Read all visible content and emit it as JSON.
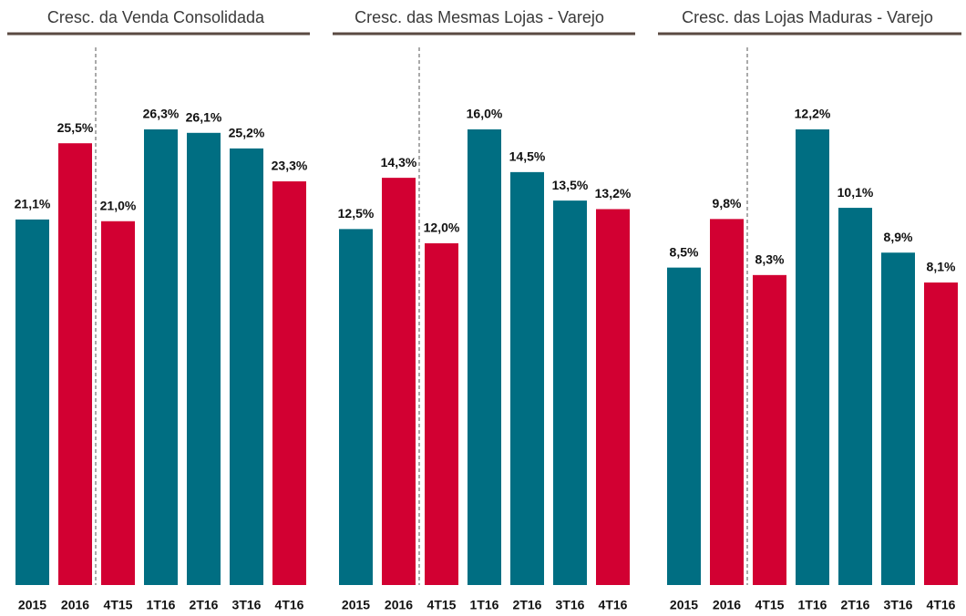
{
  "chart_data": [
    {
      "type": "bar",
      "title": "Cresc. da Venda Consolidada",
      "categories": [
        "2015",
        "2016",
        "4T15",
        "1T16",
        "2T16",
        "3T16",
        "4T16"
      ],
      "values": [
        21.1,
        25.5,
        21.0,
        26.3,
        26.1,
        25.2,
        23.3
      ],
      "value_labels": [
        "21,1%",
        "25,5%",
        "21,0%",
        "26,3%",
        "26,1%",
        "25,2%",
        "23,3%"
      ],
      "colors": [
        "#006e82",
        "#d20032",
        "#d20032",
        "#006e82",
        "#006e82",
        "#006e82",
        "#d20032"
      ]
    },
    {
      "type": "bar",
      "title": "Cresc. das Mesmas Lojas - Varejo",
      "categories": [
        "2015",
        "2016",
        "4T15",
        "1T16",
        "2T16",
        "3T16",
        "4T16"
      ],
      "values": [
        12.5,
        14.3,
        12.0,
        16.0,
        14.5,
        13.5,
        13.2
      ],
      "value_labels": [
        "12,5%",
        "14,3%",
        "12,0%",
        "16,0%",
        "14,5%",
        "13,5%",
        "13,2%"
      ],
      "colors": [
        "#006e82",
        "#d20032",
        "#d20032",
        "#006e82",
        "#006e82",
        "#006e82",
        "#d20032"
      ]
    },
    {
      "type": "bar",
      "title": "Cresc. das Lojas Maduras - Varejo",
      "categories": [
        "2015",
        "2016",
        "4T15",
        "1T16",
        "2T16",
        "3T16",
        "4T16"
      ],
      "values": [
        8.5,
        9.8,
        8.3,
        12.2,
        10.1,
        8.9,
        8.1
      ],
      "value_labels": [
        "8,5%",
        "9,8%",
        "8,3%",
        "12,2%",
        "10,1%",
        "8,9%",
        "8,1%"
      ],
      "colors": [
        "#006e82",
        "#d20032",
        "#d20032",
        "#006e82",
        "#006e82",
        "#006e82",
        "#d20032"
      ]
    }
  ]
}
